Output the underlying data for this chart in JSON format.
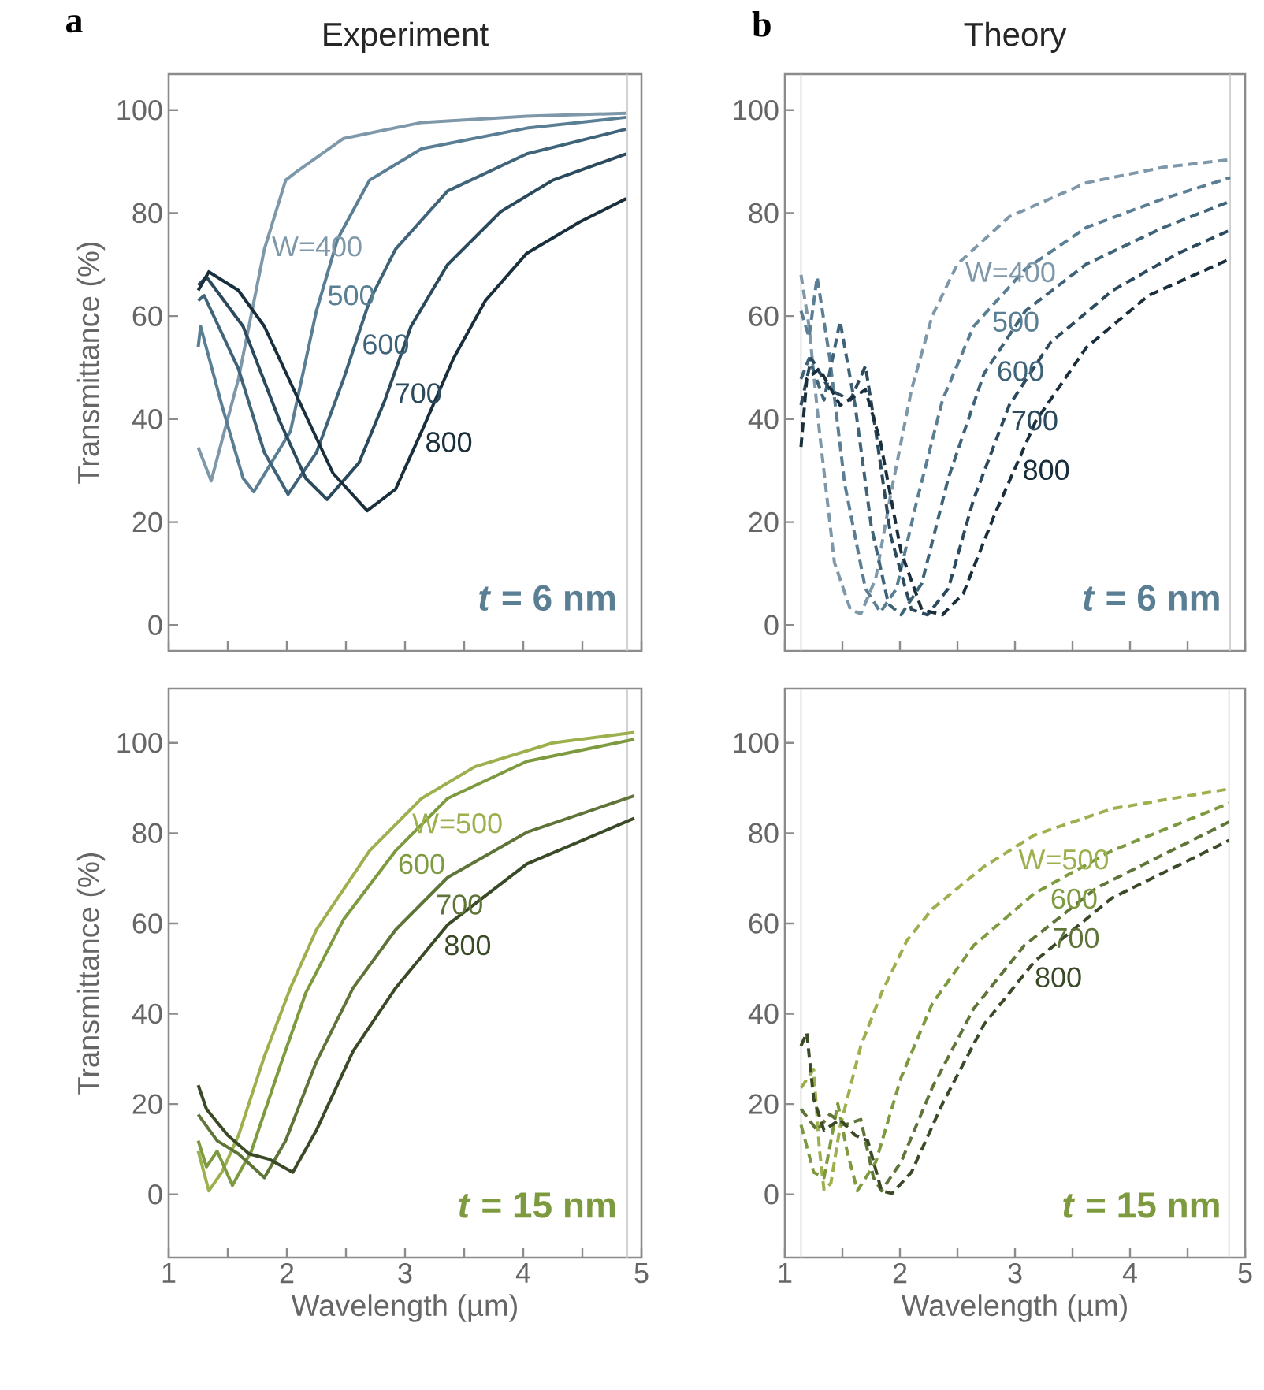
{
  "chart_data": [
    {
      "type": "line",
      "title": "Experiment",
      "ylabel": "Transmittance (%)",
      "annotations": [
        "*t* = 6 nm",
        "a"
      ],
      "line_style": "solid",
      "tick_labels": "y",
      "xlim": [
        1,
        5
      ],
      "ylim": [
        -5,
        107
      ],
      "xticks": [
        1,
        {
          "value": 1.5,
          "label": null
        },
        2,
        {
          "value": 2.5,
          "label": null
        },
        3,
        {
          "value": 3.5,
          "label": null
        },
        4,
        {
          "value": 4.5,
          "label": null
        },
        5
      ],
      "yticks": [
        0,
        20,
        40,
        60,
        80,
        100
      ],
      "ref_lines": [
        {
          "axis": "x",
          "value": 4.88,
          "color": "#c8c8c8"
        }
      ],
      "series": [
        {
          "name": "W=400",
          "color": "#7e98aa",
          "x": [
            1.25,
            1.36,
            1.59,
            1.81,
            1.99,
            2.08,
            2.48,
            3.14,
            4.03,
            4.87
          ],
          "values": [
            34.5,
            28,
            47.8,
            73,
            86.4,
            88,
            94.5,
            97.6,
            98.8,
            99.4
          ]
        },
        {
          "name": "500",
          "color": "#5a7e94",
          "x": [
            1.25,
            1.27,
            1.45,
            1.63,
            1.72,
            2.03,
            2.25,
            2.43,
            2.7,
            3.14,
            4.03,
            4.87
          ],
          "values": [
            54,
            58,
            42.7,
            28.5,
            25.9,
            37.6,
            61,
            75,
            86.4,
            92.5,
            96.5,
            98.6
          ]
        },
        {
          "name": "600",
          "color": "#3f6479",
          "x": [
            1.25,
            1.3,
            1.59,
            1.81,
            2.01,
            2.25,
            2.48,
            2.7,
            2.92,
            3.36,
            4.03,
            4.87
          ],
          "values": [
            63,
            64,
            49.8,
            33.5,
            25.4,
            33.5,
            47.8,
            63,
            73,
            84.3,
            91.5,
            96.3
          ]
        },
        {
          "name": "700",
          "color": "#2b4a5e",
          "x": [
            1.25,
            1.32,
            1.63,
            1.94,
            2.16,
            2.34,
            2.61,
            2.83,
            3.05,
            3.36,
            3.81,
            4.25,
            4.87
          ],
          "values": [
            66,
            67.6,
            58,
            39.6,
            28.5,
            24.4,
            31.5,
            43.7,
            58,
            70,
            80.3,
            86.4,
            91.5
          ]
        },
        {
          "name": "800",
          "color": "#1a2f3d",
          "x": [
            1.25,
            1.34,
            1.59,
            1.81,
            2.12,
            2.39,
            2.68,
            2.92,
            3.14,
            3.41,
            3.68,
            4.03,
            4.48,
            4.87
          ],
          "values": [
            65,
            68.6,
            65,
            58,
            42.7,
            29.5,
            22.2,
            26.4,
            37.6,
            51.8,
            63,
            72.2,
            78.3,
            82.8
          ]
        }
      ]
    },
    {
      "type": "line",
      "title": "Theory",
      "annotations": [
        "*t* = 6 nm",
        "b"
      ],
      "line_style": "dashed",
      "tick_labels": "y",
      "xlim": [
        1,
        5
      ],
      "ylim": [
        -5,
        107
      ],
      "xticks": [
        1,
        {
          "value": 1.5,
          "label": null
        },
        2,
        {
          "value": 2.5,
          "label": null
        },
        3,
        {
          "value": 3.5,
          "label": null
        },
        4,
        {
          "value": 4.5,
          "label": null
        },
        5
      ],
      "yticks": [
        0,
        20,
        40,
        60,
        80,
        100
      ],
      "ref_lines": [
        {
          "axis": "x",
          "value": 1.14,
          "color": "#c8c8c8"
        },
        {
          "axis": "x",
          "value": 4.87,
          "color": "#c8c8c8"
        }
      ],
      "series": [
        {
          "name": "W=400",
          "color": "#7e98aa",
          "x": [
            1.14,
            1.21,
            1.3,
            1.43,
            1.57,
            1.66,
            1.79,
            1.92,
            2.1,
            2.28,
            2.5,
            2.95,
            3.62,
            4.29,
            4.87
          ],
          "values": [
            68,
            58,
            37.6,
            12.2,
            3,
            2.2,
            9.1,
            25.4,
            45.7,
            60,
            70.1,
            79.3,
            85.9,
            88.9,
            90.4
          ]
        },
        {
          "name": "500",
          "color": "#5a7e94",
          "x": [
            1.14,
            1.21,
            1.28,
            1.39,
            1.52,
            1.7,
            1.83,
            1.97,
            2.15,
            2.37,
            2.64,
            3.09,
            3.62,
            4.29,
            4.87
          ],
          "values": [
            61,
            55.9,
            67.6,
            51.8,
            27.4,
            7.1,
            2.5,
            7.1,
            24.4,
            43.7,
            58,
            69.1,
            77.2,
            82.8,
            86.9
          ]
        },
        {
          "name": "600",
          "color": "#3f6479",
          "x": [
            1.14,
            1.21,
            1.34,
            1.48,
            1.61,
            1.75,
            1.9,
            2.01,
            2.19,
            2.42,
            2.73,
            3.09,
            3.62,
            4.29,
            4.87
          ],
          "values": [
            47.8,
            51.8,
            43.7,
            59,
            42.7,
            19.3,
            4.1,
            2,
            8.1,
            28.5,
            48.8,
            61,
            70.1,
            77.2,
            82.3
          ]
        },
        {
          "name": "700",
          "color": "#2b4a5e",
          "x": [
            1.14,
            1.23,
            1.39,
            1.57,
            1.7,
            1.79,
            1.92,
            2.1,
            2.24,
            2.42,
            2.64,
            2.95,
            3.31,
            3.85,
            4.42,
            4.87
          ],
          "values": [
            42.7,
            51.8,
            45.7,
            43.7,
            50.3,
            37.6,
            17.3,
            3,
            2,
            7.1,
            24.4,
            42.7,
            54.9,
            65,
            72.2,
            76.7
          ]
        },
        {
          "name": "800",
          "color": "#1a2f3d",
          "x": [
            1.14,
            1.19,
            1.3,
            1.48,
            1.7,
            1.83,
            2.01,
            2.19,
            2.37,
            2.55,
            2.82,
            3.18,
            3.62,
            4.16,
            4.87
          ],
          "values": [
            34.6,
            47.8,
            49.8,
            42.7,
            45.7,
            35.6,
            14.2,
            3,
            2,
            6.1,
            21.3,
            39.6,
            53.9,
            64,
            71.1
          ]
        }
      ]
    },
    {
      "type": "line",
      "xlabel": "Wavelength (µm)",
      "ylabel": "Transmittance (%)",
      "annotations": [
        "*t* = 15 nm"
      ],
      "line_style": "solid",
      "xlim": [
        1,
        5
      ],
      "ylim": [
        -14,
        112
      ],
      "xticks": [
        1,
        {
          "value": 1.5,
          "label": null
        },
        2,
        {
          "value": 2.5,
          "label": null
        },
        3,
        {
          "value": 3.5,
          "label": null
        },
        4,
        {
          "value": 4.5,
          "label": null
        },
        5
      ],
      "yticks": [
        0,
        20,
        40,
        60,
        80,
        100
      ],
      "ref_lines": [
        {
          "axis": "x",
          "value": 4.88,
          "color": "#c8c8c8"
        }
      ],
      "series": [
        {
          "name": "W=500",
          "color": "#9cb04e",
          "x": [
            1.25,
            1.34,
            1.45,
            1.59,
            1.81,
            2.03,
            2.25,
            2.7,
            3.14,
            3.59,
            4.25,
            4.94
          ],
          "values": [
            9.6,
            0.8,
            4.9,
            13,
            30.6,
            45.7,
            58.6,
            76.1,
            87.7,
            94.7,
            100,
            102.3
          ]
        },
        {
          "name": "600",
          "color": "#7e9a3f",
          "x": [
            1.25,
            1.32,
            1.41,
            1.54,
            1.7,
            1.94,
            2.16,
            2.48,
            2.92,
            3.36,
            4.03,
            4.94
          ],
          "values": [
            11.9,
            6.1,
            9.6,
            2,
            9.6,
            28.2,
            44.6,
            60.9,
            76.1,
            87.7,
            95.9,
            100.8
          ]
        },
        {
          "name": "700",
          "color": "#5f7438",
          "x": [
            1.25,
            1.41,
            1.59,
            1.81,
            1.99,
            2.25,
            2.56,
            2.92,
            3.36,
            4.03,
            4.94
          ],
          "values": [
            17.7,
            11.9,
            9,
            3.7,
            11.9,
            29.4,
            45.7,
            58.6,
            70.2,
            80.2,
            88.3
          ]
        },
        {
          "name": "800",
          "color": "#3a4a26",
          "x": [
            1.25,
            1.32,
            1.5,
            1.68,
            1.85,
            2.05,
            2.25,
            2.56,
            2.92,
            3.36,
            4.03,
            4.94
          ],
          "values": [
            24.2,
            18.9,
            13.1,
            9,
            7.8,
            4.9,
            14.2,
            31.7,
            45.7,
            59.7,
            73.2,
            83.3
          ]
        }
      ]
    },
    {
      "type": "line",
      "xlabel": "Wavelength (µm)",
      "annotations": [
        "*t* = 15 nm"
      ],
      "line_style": "dashed",
      "xlim": [
        1,
        5
      ],
      "ylim": [
        -14,
        112
      ],
      "xticks": [
        1,
        {
          "value": 1.5,
          "label": null
        },
        2,
        {
          "value": 2.5,
          "label": null
        },
        3,
        {
          "value": 3.5,
          "label": null
        },
        4,
        {
          "value": 4.5,
          "label": null
        },
        5
      ],
      "yticks": [
        0,
        20,
        40,
        60,
        80,
        100
      ],
      "ref_lines": [
        {
          "axis": "x",
          "value": 1.14,
          "color": "#c8c8c8"
        },
        {
          "axis": "x",
          "value": 4.86,
          "color": "#c8c8c8"
        }
      ],
      "series": [
        {
          "name": "W=500",
          "color": "#9cb04e",
          "x": [
            1.14,
            1.25,
            1.3,
            1.34,
            1.4,
            1.48,
            1.66,
            1.84,
            2.06,
            2.28,
            2.73,
            3.17,
            3.84,
            4.86
          ],
          "values": [
            23.6,
            27.7,
            10,
            1,
            2.5,
            15,
            32.9,
            44.6,
            56.2,
            63.2,
            72.6,
            79.6,
            85.4,
            89.8
          ]
        },
        {
          "name": "600",
          "color": "#7e9a3f",
          "x": [
            1.14,
            1.25,
            1.34,
            1.46,
            1.54,
            1.63,
            1.79,
            2.01,
            2.28,
            2.64,
            3.17,
            3.84,
            4.86
          ],
          "values": [
            15.4,
            4.9,
            3.7,
            20.1,
            9.6,
            0.8,
            7.2,
            25.9,
            42.2,
            55.1,
            66.7,
            76.1,
            86.6
          ]
        },
        {
          "name": "700",
          "color": "#5f7438",
          "x": [
            1.14,
            1.28,
            1.39,
            1.52,
            1.66,
            1.77,
            1.84,
            2.01,
            2.28,
            2.64,
            3.08,
            3.71,
            4.86
          ],
          "values": [
            18.9,
            14.2,
            17.7,
            15.4,
            16.6,
            3.7,
            0.8,
            7.2,
            23.6,
            41.1,
            55.1,
            67.9,
            82.5
          ]
        },
        {
          "name": "800",
          "color": "#3a4a26",
          "x": [
            1.14,
            1.19,
            1.25,
            1.34,
            1.48,
            1.61,
            1.72,
            1.84,
            1.93,
            2.1,
            2.37,
            2.73,
            3.17,
            3.84,
            4.86
          ],
          "values": [
            32.9,
            35.8,
            21.2,
            14.2,
            16.6,
            13.1,
            11.9,
            0.8,
            0.2,
            4.9,
            20.1,
            37.6,
            51.6,
            65.6,
            78.4
          ]
        }
      ]
    }
  ]
}
